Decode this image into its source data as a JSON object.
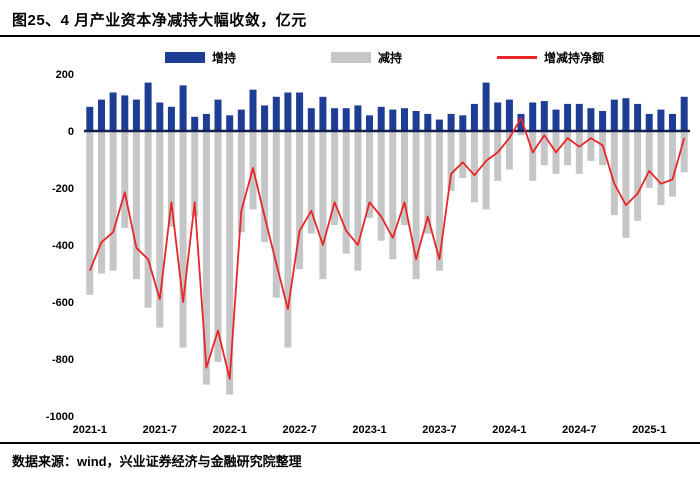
{
  "title": "图25、4 月产业资本净减持大幅收敛，亿元",
  "footer": "数据来源：wind，兴业证券经济与金融研究院整理",
  "legend": [
    {
      "label": "增持",
      "color": "#1d3e94",
      "type": "bar"
    },
    {
      "label": "减持",
      "color": "#c6c6c6",
      "type": "bar"
    },
    {
      "label": "增减持净额",
      "color": "#e8262a",
      "type": "line"
    }
  ],
  "colors": {
    "increase_bar": "#1d3e94",
    "decrease_bar": "#c6c6c6",
    "net_line": "#e8262a",
    "zero_axis": "#121f55",
    "text": "#000000"
  },
  "chart_data": {
    "type": "bar+line",
    "title": "图25、4 月产业资本净减持大幅收敛，亿元",
    "unit": "亿元",
    "ylim": [
      -1000,
      200
    ],
    "yticks": [
      200,
      0,
      -200,
      -400,
      -600,
      -800,
      -1000
    ],
    "zero_line_color": "#121f55",
    "grid": false,
    "legend_position": "top",
    "x": [
      "2021-1",
      "2021-2",
      "2021-3",
      "2021-4",
      "2021-5",
      "2021-6",
      "2021-7",
      "2021-8",
      "2021-9",
      "2021-10",
      "2021-11",
      "2021-12",
      "2022-1",
      "2022-2",
      "2022-3",
      "2022-4",
      "2022-5",
      "2022-6",
      "2022-7",
      "2022-8",
      "2022-9",
      "2022-10",
      "2022-11",
      "2022-12",
      "2023-1",
      "2023-2",
      "2023-3",
      "2023-4",
      "2023-5",
      "2023-6",
      "2023-7",
      "2023-8",
      "2023-9",
      "2023-10",
      "2023-11",
      "2023-12",
      "2024-1",
      "2024-2",
      "2024-3",
      "2024-4",
      "2024-5",
      "2024-6",
      "2024-7",
      "2024-8",
      "2024-9",
      "2024-10",
      "2024-11",
      "2024-12",
      "2025-1",
      "2025-2",
      "2025-3",
      "2025-4"
    ],
    "xticks": [
      {
        "i": 0,
        "label": "2021-1"
      },
      {
        "i": 6,
        "label": "2021-7"
      },
      {
        "i": 12,
        "label": "2022-1"
      },
      {
        "i": 18,
        "label": "2022-7"
      },
      {
        "i": 24,
        "label": "2023-1"
      },
      {
        "i": 30,
        "label": "2023-7"
      },
      {
        "i": 36,
        "label": "2024-1"
      },
      {
        "i": 42,
        "label": "2024-7"
      },
      {
        "i": 48,
        "label": "2025-1"
      }
    ],
    "series": [
      {
        "name": "增持",
        "type": "bar",
        "color": "#1d3e94",
        "values": [
          85,
          110,
          135,
          125,
          110,
          170,
          100,
          85,
          160,
          50,
          60,
          110,
          55,
          75,
          145,
          90,
          120,
          135,
          135,
          80,
          120,
          80,
          80,
          90,
          55,
          85,
          75,
          80,
          70,
          60,
          40,
          60,
          55,
          95,
          170,
          100,
          110,
          60,
          100,
          105,
          75,
          95,
          95,
          80,
          70,
          110,
          115,
          95,
          60,
          75,
          60,
          120
        ]
      },
      {
        "name": "减持",
        "type": "bar",
        "color": "#c6c6c6",
        "values": [
          -575,
          -500,
          -490,
          -340,
          -520,
          -620,
          -690,
          -335,
          -760,
          -300,
          -890,
          -810,
          -925,
          -355,
          -275,
          -390,
          -585,
          -760,
          -485,
          -360,
          -520,
          -330,
          -430,
          -490,
          -305,
          -385,
          -450,
          -330,
          -520,
          -360,
          -490,
          -210,
          -165,
          -250,
          -275,
          -175,
          -135,
          -15,
          -175,
          -120,
          -150,
          -120,
          -150,
          -105,
          -120,
          -295,
          -375,
          -315,
          -200,
          -260,
          -230,
          -145
        ]
      },
      {
        "name": "增减持净额",
        "type": "line",
        "color": "#e8262a",
        "values": [
          -490,
          -390,
          -355,
          -215,
          -410,
          -450,
          -590,
          -250,
          -600,
          -250,
          -830,
          -700,
          -870,
          -280,
          -130,
          -300,
          -465,
          -625,
          -350,
          -280,
          -400,
          -250,
          -350,
          -400,
          -250,
          -300,
          -375,
          -250,
          -450,
          -300,
          -450,
          -150,
          -110,
          -155,
          -105,
          -75,
          -25,
          45,
          -75,
          -15,
          -75,
          -25,
          -55,
          -25,
          -50,
          -185,
          -260,
          -220,
          -140,
          -185,
          -170,
          -25
        ]
      }
    ]
  }
}
